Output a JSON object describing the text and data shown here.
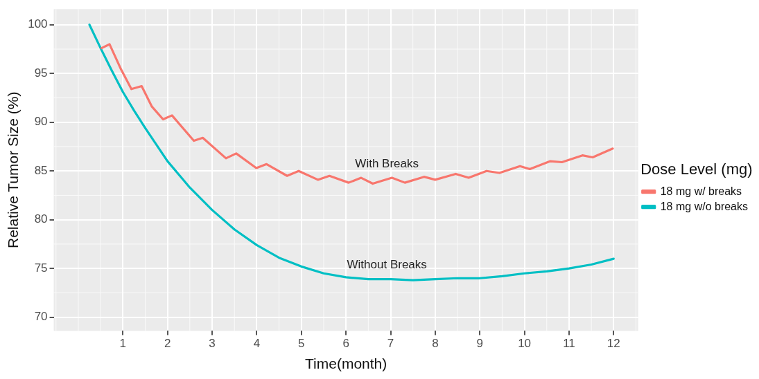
{
  "chart_data": {
    "type": "line",
    "xlabel": "Time(month)",
    "ylabel": "Relative Tumor Size (%)",
    "legend_title": "Dose Level (mg)",
    "legend": "right",
    "grid": true,
    "marker": "none",
    "line_style": "solid",
    "xlim": [
      -0.55,
      12.55
    ],
    "xticks": [
      1,
      2,
      3,
      4,
      5,
      6,
      7,
      8,
      9,
      10,
      11,
      12
    ],
    "ylim": [
      68.6,
      101.6
    ],
    "yticks": [
      70,
      75,
      80,
      85,
      90,
      95,
      100
    ],
    "series": [
      {
        "name": "18 mg w/ breaks",
        "color": "#f8766d",
        "x": [
          0.52,
          0.7,
          0.96,
          1.19,
          1.42,
          1.65,
          1.9,
          2.1,
          2.59,
          2.79,
          3.31,
          3.54,
          3.99,
          4.22,
          4.68,
          4.94,
          5.37,
          5.63,
          6.06,
          6.34,
          6.6,
          7.03,
          7.32,
          7.75,
          8.0,
          8.46,
          8.75,
          9.15,
          9.44,
          9.9,
          10.12,
          10.58,
          10.84,
          11.3,
          11.53,
          11.98
        ],
        "values": [
          97.6,
          98.0,
          95.4,
          93.4,
          93.7,
          91.6,
          90.3,
          90.7,
          88.1,
          88.4,
          86.3,
          86.8,
          85.3,
          85.7,
          84.5,
          85.0,
          84.1,
          84.5,
          83.8,
          84.3,
          83.7,
          84.3,
          83.8,
          84.4,
          84.1,
          84.7,
          84.3,
          85.0,
          84.8,
          85.5,
          85.2,
          86.0,
          85.9,
          86.6,
          86.4,
          87.3
        ]
      },
      {
        "name": "18 mg w/o breaks",
        "color": "#00bfc4",
        "x": [
          0.25,
          0.5,
          0.75,
          1,
          1.25,
          1.5,
          1.75,
          2,
          2.5,
          3,
          3.5,
          4,
          4.5,
          5,
          5.5,
          6,
          6.5,
          7,
          7.5,
          8,
          8.5,
          9,
          9.5,
          10,
          10.5,
          11,
          11.5,
          12
        ],
        "values": [
          100,
          97.6,
          95.3,
          93.1,
          91.2,
          89.4,
          87.7,
          86.0,
          83.3,
          81.0,
          79.0,
          77.4,
          76.1,
          75.2,
          74.5,
          74.1,
          73.9,
          73.9,
          73.8,
          73.9,
          74.0,
          74.0,
          74.2,
          74.5,
          74.7,
          75.0,
          75.4,
          76.0
        ]
      }
    ],
    "annotations": [
      "With Breaks",
      "Without Breaks"
    ]
  }
}
